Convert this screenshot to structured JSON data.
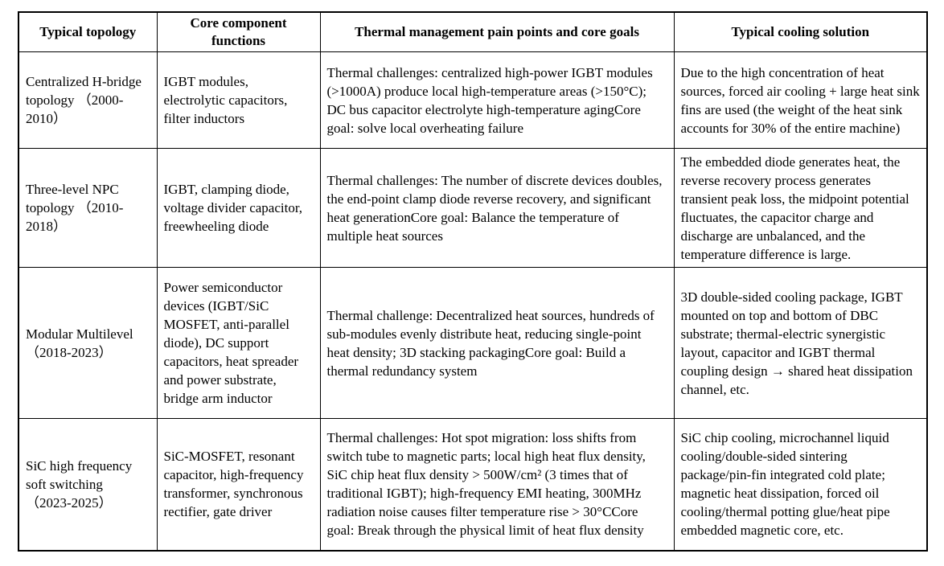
{
  "table": {
    "headers": [
      "Typical topology",
      "Core component functions",
      "Thermal management pain points and core goals",
      "Typical cooling solution"
    ],
    "rows": [
      {
        "topology": "Centralized H-bridge topology （2000-2010）",
        "components": "IGBT modules, electrolytic capacitors, filter inductors",
        "pain_points": "Thermal challenges: centralized high-power IGBT modules (>1000A) produce local high-temperature areas (>150°C); DC bus capacitor electrolyte high-temperature agingCore goal: solve local overheating failure",
        "cooling": "Due to the high concentration of heat sources, forced air cooling + large heat sink fins are used (the weight of the heat sink accounts for 30% of the entire machine)"
      },
      {
        "topology": "Three-level NPC topology （2010-2018）",
        "components": "IGBT, clamping diode, voltage divider capacitor, freewheeling diode",
        "pain_points": "Thermal challenges: The number of discrete devices doubles, the end-point clamp diode reverse recovery, and significant heat generationCore goal: Balance the temperature of multiple heat sources",
        "cooling": "The embedded diode generates heat, the reverse recovery process generates transient peak loss, the midpoint potential fluctuates, the capacitor charge and discharge are unbalanced, and the temperature difference is large."
      },
      {
        "topology": "Modular Multilevel （2018-2023）",
        "components": "Power semiconductor devices (IGBT/SiC MOSFET, anti-parallel diode), DC support capacitors, heat spreader and power substrate, bridge arm inductor",
        "pain_points": "Thermal challenge: Decentralized heat sources, hundreds of sub-modules evenly distribute heat, reducing single-point heat density; 3D stacking packagingCore goal: Build a thermal redundancy system",
        "cooling": "3D double-sided cooling package, IGBT mounted on top and bottom of DBC substrate; thermal-electric synergistic layout, capacitor and IGBT thermal coupling design → shared heat dissipation channel, etc."
      },
      {
        "topology": "SiC high frequency soft switching （2023-2025）",
        "components": "SiC-MOSFET, resonant capacitor, high-frequency transformer, synchronous rectifier, gate driver",
        "pain_points": "Thermal challenges: Hot spot migration: loss shifts from switch tube to magnetic parts; local high heat flux density, SiC chip heat flux density > 500W/cm² (3 times that of traditional IGBT); high-frequency EMI heating, 300MHz radiation noise causes filter temperature rise > 30°CCore goal: Break through the physical limit of heat flux density",
        "cooling": "SiC chip cooling, microchannel liquid cooling/double-sided sintering package/pin-fin integrated cold plate; magnetic heat dissipation, forced oil cooling/thermal potting glue/heat pipe embedded magnetic core, etc."
      }
    ]
  }
}
